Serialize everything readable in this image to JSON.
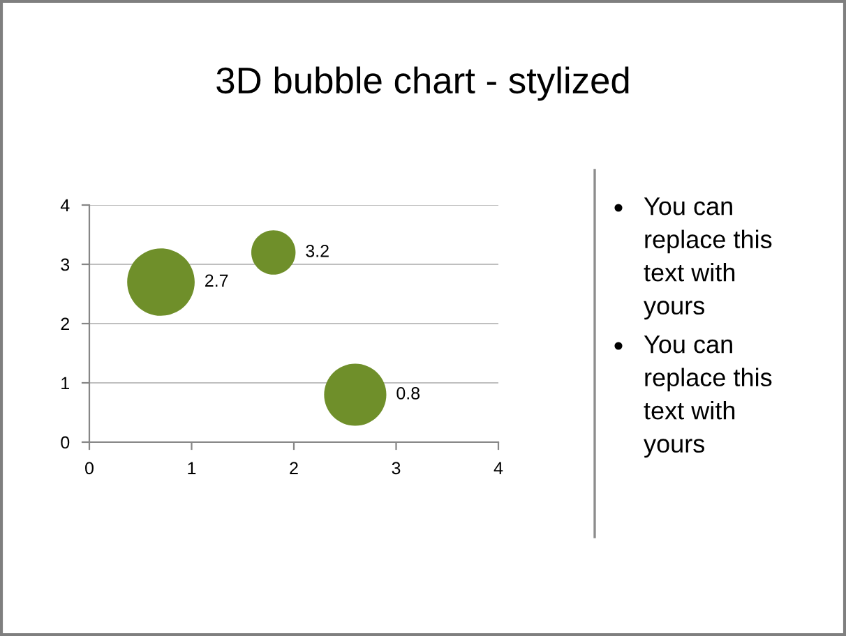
{
  "chart_data": {
    "type": "bubble",
    "title": "3D bubble chart - stylized",
    "x": [
      0.7,
      1.8,
      2.6
    ],
    "series": [
      {
        "color": "#6f8f2a",
        "values": [
          2.7,
          3.2,
          0.8
        ],
        "sizes": [
          1,
          0.43,
          0.85
        ]
      }
    ],
    "xlim": [
      0,
      4
    ],
    "ylim": [
      0,
      4
    ],
    "xticks": [
      0,
      1,
      2,
      3,
      4
    ],
    "yticks": [
      0,
      1,
      2,
      3,
      4
    ],
    "grid": "y",
    "data_labels": true,
    "annotations": [
      "You can replace this text with yours",
      "You can replace this text with yours"
    ]
  }
}
